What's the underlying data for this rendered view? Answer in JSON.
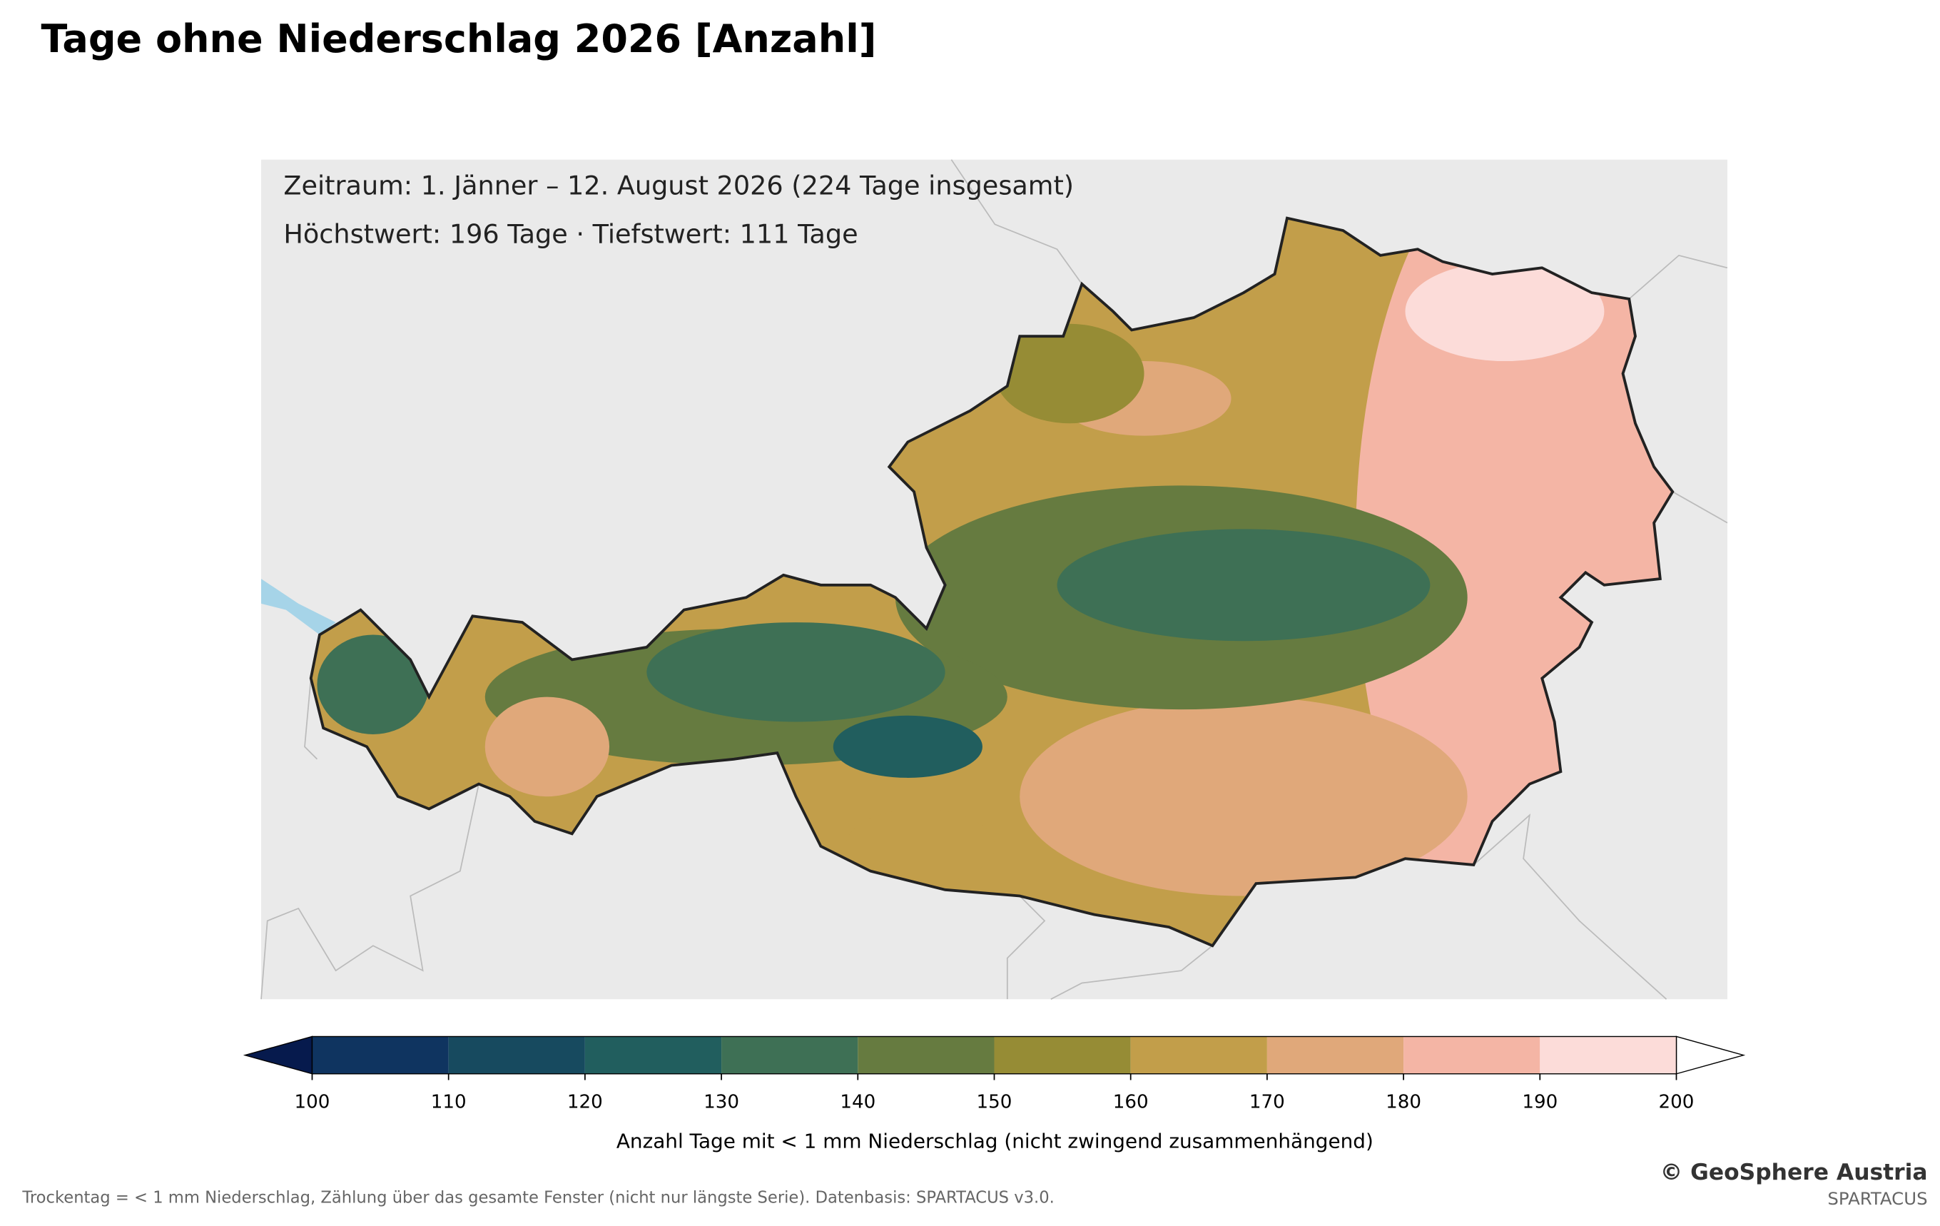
{
  "title": "Tage ohne Niederschlag 2026 [Anzahl]",
  "info": [
    "Zeitraum: 1. Jänner – 12. August 2026 (224 Tage insgesamt)",
    "Höchstwert: 196 Tage · Tiefstwert: 111 Tage"
  ],
  "colorbar": {
    "bounds": [
      100,
      110,
      120,
      130,
      140,
      150,
      160,
      170,
      180,
      190,
      200
    ],
    "colors": [
      "#0f3460",
      "#174a5f",
      "#215e5e",
      "#3e7055",
      "#667b40",
      "#968c35",
      "#c29e4a",
      "#e0a87a",
      "#f4b5a5",
      "#fcdcd9"
    ],
    "under_color": "#061a4d",
    "over_color": "#ffffff",
    "ticks": [
      100,
      110,
      120,
      130,
      140,
      150,
      160,
      170,
      180,
      190,
      200
    ],
    "label": "Anzahl Tage mit < 1 mm Niederschlag (nicht zwingend zusammenhängend)"
  },
  "footnote": "Trockentag = < 1 mm Niederschlag, Zählung über das gesamte Fenster (nicht nur längste Serie). Datenbasis: SPARTACUS v3.0.",
  "credit": "© GeoSphere Austria",
  "source": "SPARTACUS"
}
